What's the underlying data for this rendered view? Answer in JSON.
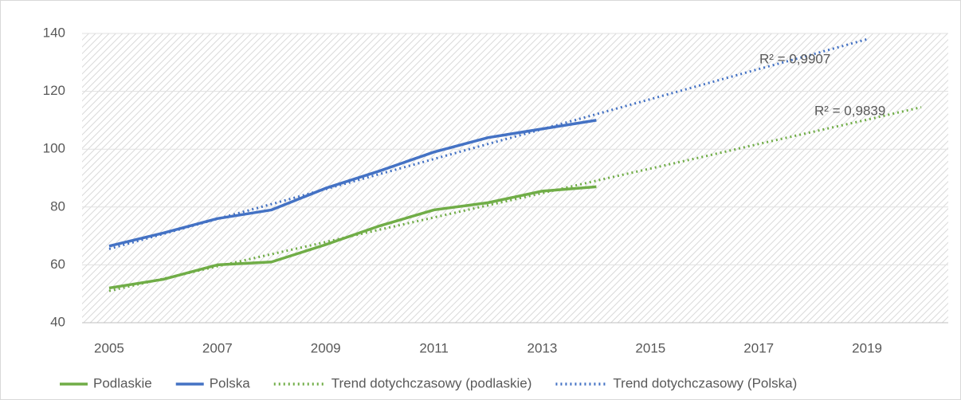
{
  "chart_data": {
    "type": "line",
    "x": [
      2005,
      2006,
      2007,
      2008,
      2009,
      2010,
      2011,
      2012,
      2013,
      2014,
      2015,
      2016,
      2017,
      2018,
      2019,
      2020
    ],
    "xlim": [
      2004.5,
      2020.5
    ],
    "xticks": [
      2005,
      2007,
      2009,
      2011,
      2013,
      2015,
      2017,
      2019
    ],
    "ylim": [
      40,
      140
    ],
    "yticks": [
      40,
      60,
      80,
      100,
      120,
      140
    ],
    "grid": true,
    "legend": "bottom",
    "series": [
      {
        "name": "Podlaskie",
        "color": "#70ad47",
        "style": "solid",
        "values": [
          52,
          55,
          60,
          61,
          67,
          73.5,
          79,
          81.5,
          85.5,
          87,
          null,
          null,
          null,
          null,
          null,
          null
        ]
      },
      {
        "name": "Polska",
        "color": "#4472c4",
        "style": "solid",
        "values": [
          66.5,
          71,
          76,
          79,
          86.5,
          92.5,
          99,
          104,
          107,
          110,
          null,
          null,
          null,
          null,
          null,
          null
        ]
      },
      {
        "name": "Trend dotychczasowy (podlaskie)",
        "color": "#70ad47",
        "style": "dotted",
        "values": [
          51,
          55.2,
          59.5,
          63.7,
          67.9,
          72.2,
          76.4,
          80.6,
          84.8,
          89.1,
          93.3,
          97.5,
          101.8,
          106,
          110.2,
          114.5
        ]
      },
      {
        "name": "Trend dotychczasowy (Polska)",
        "color": "#4472c4",
        "style": "dotted",
        "values": [
          65.5,
          70.7,
          75.9,
          81.0,
          86.2,
          91.4,
          96.6,
          101.8,
          106.9,
          112.1,
          117.3,
          122.5,
          127.7,
          132.8,
          138.0,
          null
        ]
      }
    ],
    "annotations": [
      "R² = 0,9839",
      "R² = 0,9907"
    ]
  }
}
